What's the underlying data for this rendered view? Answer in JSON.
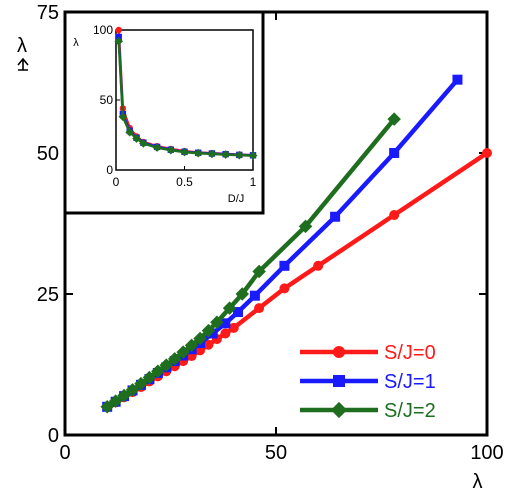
{
  "chart_data": [
    {
      "type": "line",
      "xlabel": "λ",
      "ylabel": "λ",
      "xlim": [
        0,
        100
      ],
      "ylim": [
        0,
        75
      ],
      "xticks": [
        0,
        50,
        100
      ],
      "xtick_labels": [
        "0",
        "50",
        "100"
      ],
      "yticks": [
        0,
        25,
        50,
        75
      ],
      "ytick_labels": [
        "0",
        "25",
        "50",
        "75"
      ],
      "grid": false,
      "legend_position": "bottom-right",
      "series": [
        {
          "name": "S/J=0",
          "color": "#ff1a1a",
          "marker": "circle",
          "x": [
            10,
            12,
            14,
            16,
            18,
            20,
            22,
            24,
            26,
            28,
            30,
            32,
            34,
            36,
            38,
            40,
            46,
            52,
            60,
            78,
            100
          ],
          "y": [
            5,
            5.8,
            6.7,
            7.6,
            8.5,
            9.5,
            10.4,
            11.3,
            12.2,
            13.1,
            14,
            15,
            16,
            17,
            18,
            19,
            22.5,
            26,
            30,
            39,
            50
          ]
        },
        {
          "name": "S/J=1",
          "color": "#1a1aff",
          "marker": "square",
          "x": [
            10,
            12,
            14,
            16,
            18,
            20,
            22,
            24,
            26,
            28,
            30,
            32,
            35,
            38,
            41,
            45,
            52,
            64,
            78,
            93
          ],
          "y": [
            5,
            5.9,
            6.9,
            7.9,
            8.9,
            9.9,
            11,
            12,
            13.1,
            14.1,
            15.2,
            16.3,
            18,
            19.8,
            21.8,
            24.7,
            30,
            38.7,
            50,
            63
          ]
        },
        {
          "name": "S/J=2",
          "color": "#1f6e1f",
          "marker": "diamond",
          "x": [
            10,
            12,
            14,
            16,
            18,
            20,
            22,
            24,
            26,
            28,
            30,
            32,
            34,
            36,
            39,
            42,
            46,
            57,
            78
          ],
          "y": [
            5,
            6,
            7,
            8,
            9.1,
            10.2,
            11.3,
            12.4,
            13.5,
            14.7,
            15.9,
            17.1,
            18.5,
            20,
            22.5,
            25,
            29,
            37,
            56
          ]
        }
      ]
    },
    {
      "type": "line",
      "inset": true,
      "xlabel": "D/J",
      "ylabel": "λ",
      "xlim": [
        0,
        1
      ],
      "ylim": [
        0,
        100
      ],
      "xticks": [
        0,
        0.5,
        1
      ],
      "xtick_labels": [
        "0",
        "0.5",
        "1"
      ],
      "yticks": [
        0,
        50,
        100
      ],
      "ytick_labels": [
        "0",
        "50",
        "100"
      ],
      "grid": false,
      "series": [
        {
          "name": "S/J=0",
          "color": "#ff1a1a",
          "marker": "circle",
          "x": [
            0.02,
            0.05,
            0.1,
            0.15,
            0.2,
            0.3,
            0.4,
            0.5,
            0.6,
            0.7,
            0.8,
            0.9,
            1.0
          ],
          "y": [
            100,
            44,
            30,
            24,
            20,
            17,
            15,
            13.5,
            12.5,
            12,
            11.5,
            11,
            10.5
          ]
        },
        {
          "name": "S/J=1",
          "color": "#1a1aff",
          "marker": "square",
          "x": [
            0.02,
            0.05,
            0.1,
            0.15,
            0.2,
            0.3,
            0.4,
            0.5,
            0.6,
            0.7,
            0.8,
            0.9,
            1.0
          ],
          "y": [
            95,
            40,
            28,
            23,
            19.5,
            16.5,
            14.5,
            13,
            12.3,
            11.8,
            11.3,
            10.8,
            10.5
          ]
        },
        {
          "name": "S/J=2",
          "color": "#1f6e1f",
          "marker": "diamond",
          "x": [
            0.02,
            0.05,
            0.1,
            0.15,
            0.2,
            0.3,
            0.4,
            0.5,
            0.6,
            0.7,
            0.8,
            0.9,
            1.0
          ],
          "y": [
            92,
            38,
            27,
            22.5,
            19,
            16,
            14.2,
            12.8,
            12,
            11.5,
            11,
            10.6,
            10.3
          ]
        }
      ]
    }
  ]
}
